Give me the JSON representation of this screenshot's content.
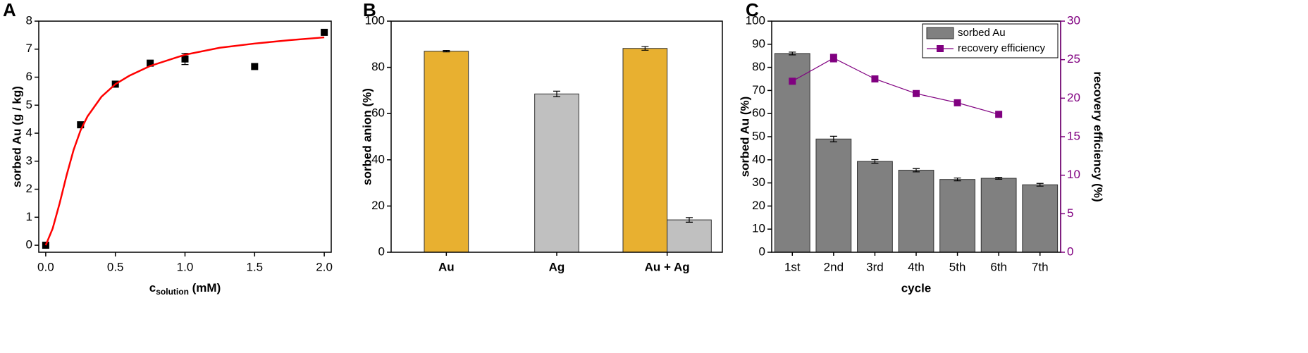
{
  "chart_data": [
    {
      "type": "scatter",
      "panel": "A",
      "xlabel": {
        "main": "c",
        "sub": "solution",
        "rest": " (mM)"
      },
      "ylabel": "sorbed Au (g / kg)",
      "xlim": [
        -0.05,
        2.05
      ],
      "xticks": [
        {
          "value": 0,
          "label": "0.0"
        },
        {
          "value": 0.5,
          "label": "0.5"
        },
        {
          "value": 1,
          "label": "1.0"
        },
        {
          "value": 1.5,
          "label": "1.5"
        },
        {
          "value": 2,
          "label": "2.0"
        }
      ],
      "ylim": [
        -0.25,
        8
      ],
      "yticks": [
        0,
        1,
        2,
        3,
        4,
        5,
        6,
        7,
        8
      ],
      "series": [
        {
          "style": "marker",
          "color": "#000000",
          "x": [
            0,
            0.25,
            0.5,
            0.75,
            1.0,
            1.5,
            2.0
          ],
          "values": [
            0,
            4.3,
            5.75,
            6.5,
            6.65,
            6.38,
            7.6
          ],
          "errors": [
            null,
            null,
            null,
            null,
            0.2,
            null,
            null
          ]
        },
        {
          "style": "line",
          "color": "#ff0000",
          "x": [
            0,
            0.05,
            0.1,
            0.15,
            0.2,
            0.25,
            0.3,
            0.4,
            0.5,
            0.6,
            0.75,
            1.0,
            1.25,
            1.5,
            1.75,
            2.0
          ],
          "values": [
            0,
            0.6,
            1.5,
            2.5,
            3.4,
            4.1,
            4.6,
            5.3,
            5.75,
            6.05,
            6.4,
            6.8,
            7.05,
            7.2,
            7.32,
            7.42
          ]
        }
      ]
    },
    {
      "type": "bar",
      "panel": "B",
      "ylabel": "sorbed anion (%)",
      "categories": [
        "Au",
        "Ag",
        "Au + Ag"
      ],
      "ylim": [
        0,
        100
      ],
      "yticks": [
        0,
        20,
        40,
        60,
        80,
        100
      ],
      "series": [
        {
          "color": "#e8b030",
          "values": [
            87,
            null,
            88.2
          ],
          "errors": [
            0.3,
            null,
            0.8
          ]
        },
        {
          "color": "#c0c0c0",
          "values": [
            null,
            68.5,
            14
          ],
          "errors": [
            null,
            1.2,
            1.0
          ]
        }
      ]
    },
    {
      "type": "bar",
      "panel": "C",
      "xlabel": "cycle",
      "ylabel": "sorbed Au (%)",
      "y2label": "recovery efficiency (%)",
      "y2color": "#800080",
      "categories": [
        "1st",
        "2nd",
        "3rd",
        "4th",
        "5th",
        "6th",
        "7th"
      ],
      "ylim": [
        0,
        100
      ],
      "yticks": [
        0,
        10,
        20,
        30,
        40,
        50,
        60,
        70,
        80,
        90,
        100
      ],
      "y2lim": [
        0,
        30
      ],
      "y2ticks": [
        0,
        5,
        10,
        15,
        20,
        25,
        30
      ],
      "legend": "upper right",
      "series": [
        {
          "name": "sorbed Au",
          "color": "#808080",
          "values": [
            86,
            49,
            39.3,
            35.5,
            31.5,
            32,
            29.2
          ],
          "errors": [
            0.6,
            1.2,
            0.8,
            0.7,
            0.6,
            0.4,
            0.6
          ]
        },
        {
          "name": "recovery efficiency",
          "style": "line",
          "axis": "y2",
          "color": "#800080",
          "values": [
            22.2,
            25.2,
            22.5,
            20.6,
            19.4,
            17.9,
            null
          ],
          "errors": [
            null,
            0.5,
            null,
            null,
            null,
            null,
            null
          ]
        }
      ]
    }
  ]
}
